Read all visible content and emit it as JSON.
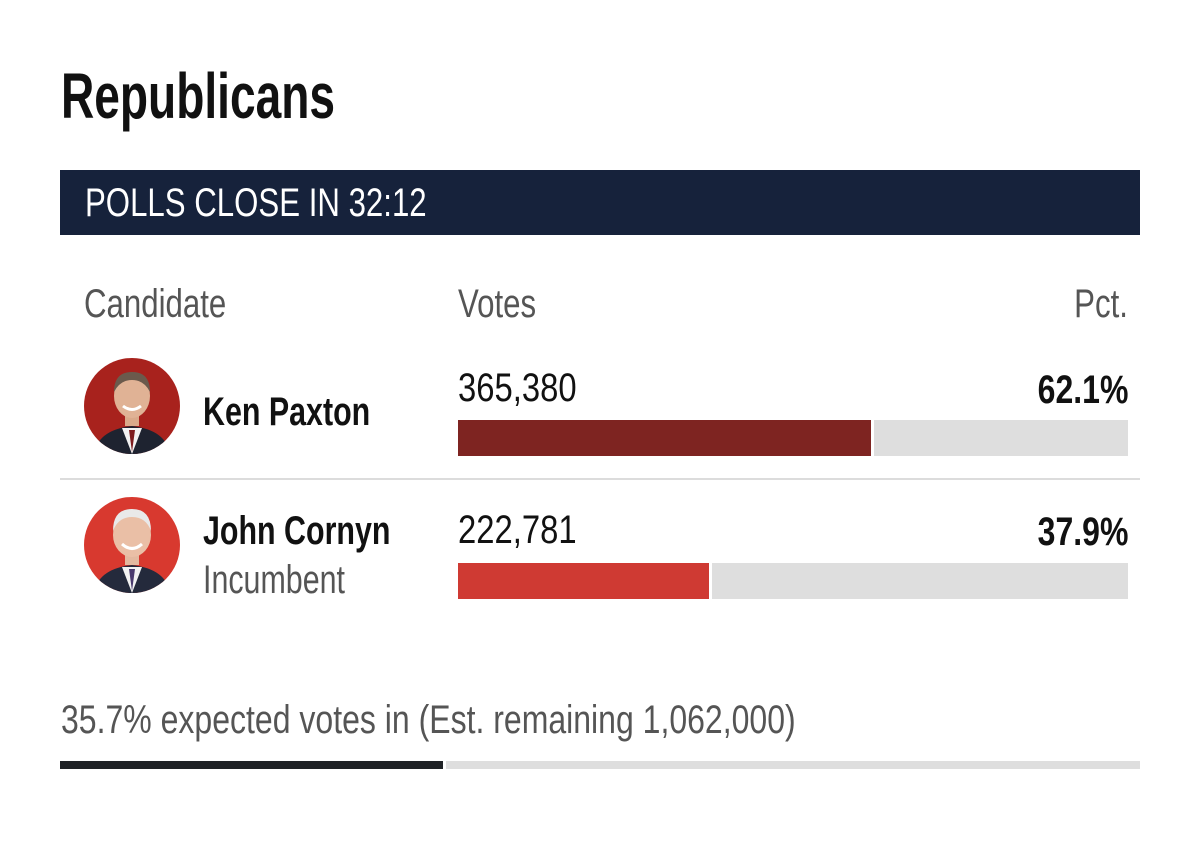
{
  "party_title": "Republicans",
  "banner": {
    "text": "POLLS CLOSE IN 32:12",
    "color": "#16223b"
  },
  "columns": {
    "candidate": "Candidate",
    "votes": "Votes",
    "pct": "Pct."
  },
  "candidates": [
    {
      "name": "Ken Paxton",
      "subtitle": "",
      "votes": "365,380",
      "pct": "62.1%",
      "share": 0.621,
      "bar_color": "#7e2421",
      "avatar_bg": "#a8221d",
      "avatar_icon": "candidate-photo"
    },
    {
      "name": "John Cornyn",
      "subtitle": "Incumbent",
      "votes": "222,781",
      "pct": "37.9%",
      "share": 0.379,
      "bar_color": "#cf3a33",
      "avatar_bg": "#d8392f",
      "avatar_icon": "candidate-photo"
    }
  ],
  "footer": {
    "text": "35.7% expected votes in (Est. remaining 1,062,000)",
    "expected_share": 0.357
  }
}
